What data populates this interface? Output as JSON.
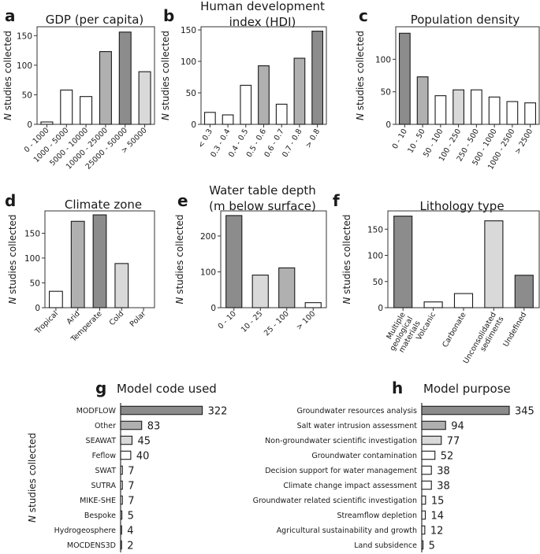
{
  "figure": {
    "y_axis_label_prefix": "N",
    "y_axis_label_suffix": "studies collected"
  },
  "colors": {
    "white": "#ffffff",
    "light": "#d9d9d9",
    "mid": "#b0b0b0",
    "dark": "#8c8c8c",
    "edge": "#1a1a1a"
  },
  "chart_data": [
    {
      "panel": "a",
      "type": "bar",
      "title": "GDP (per capita)",
      "categories": [
        "0 - 1000",
        "1000 - 5000",
        "5000 - 10000",
        "10000 - 25000",
        "25000 - 50000",
        "> 50000"
      ],
      "values": [
        4,
        58,
        47,
        123,
        156,
        89
      ],
      "shades": [
        "white",
        "white",
        "white",
        "mid",
        "dark",
        "light"
      ],
      "ylim": [
        0,
        165
      ],
      "yticks": [
        0,
        50,
        100,
        150
      ],
      "ylabel": "N studies collected"
    },
    {
      "panel": "b",
      "type": "bar",
      "title": "Human development index (HDI)",
      "title_lines": [
        "Human development",
        "index (HDI)"
      ],
      "categories": [
        "< 0.3",
        "0.3 - 0.4",
        "0.4 - 0.5",
        "0.5 - 0.6",
        "0.6 - 0.7",
        "0.7 - 0.8",
        "> 0.8"
      ],
      "values": [
        19,
        15,
        62,
        93,
        32,
        105,
        148
      ],
      "shades": [
        "white",
        "white",
        "white",
        "mid",
        "white",
        "mid",
        "dark"
      ],
      "ylim": [
        0,
        155
      ],
      "yticks": [
        0,
        50,
        100,
        150
      ],
      "ylabel": "N studies collected"
    },
    {
      "panel": "c",
      "type": "bar",
      "title": "Population density",
      "categories": [
        "0 - 10",
        "10 - 50",
        "50 - 100",
        "100 - 250",
        "250 - 500",
        "500 - 1000",
        "1000 - 2500",
        "> 2500"
      ],
      "values": [
        140,
        73,
        44,
        53,
        53,
        42,
        35,
        33
      ],
      "shades": [
        "dark",
        "mid",
        "white",
        "light",
        "white",
        "white",
        "white",
        "white"
      ],
      "ylim": [
        0,
        150
      ],
      "yticks": [
        0,
        50,
        100
      ],
      "ylabel": "N studies collected"
    },
    {
      "panel": "d",
      "type": "bar",
      "title": "Climate zone",
      "categories": [
        "Tropical",
        "Arid",
        "Temperate",
        "Cold",
        "Polar"
      ],
      "values": [
        33,
        174,
        187,
        89,
        0
      ],
      "shades": [
        "white",
        "mid",
        "dark",
        "light",
        "white"
      ],
      "ylim": [
        0,
        195
      ],
      "yticks": [
        0,
        50,
        100,
        150
      ],
      "ylabel": "N studies collected"
    },
    {
      "panel": "e",
      "type": "bar",
      "title": "Water table depth (m below surface)",
      "title_lines": [
        "Water table depth",
        "(m below surface)"
      ],
      "categories": [
        "0 - 10",
        "10 - 25",
        "25 - 100",
        "> 100"
      ],
      "values": [
        257,
        91,
        111,
        14
      ],
      "shades": [
        "dark",
        "light",
        "mid",
        "white"
      ],
      "ylim": [
        0,
        270
      ],
      "yticks": [
        0,
        100,
        200
      ],
      "ylabel": "N studies collected"
    },
    {
      "panel": "f",
      "type": "bar",
      "title": "Lithology type",
      "categories": [
        "Multiple geological materials",
        "Volcanic",
        "Carbonate",
        "Unconsolidated sediments",
        "Undefined"
      ],
      "category_lines": [
        [
          "Multiple",
          "geological",
          "materials"
        ],
        [
          "Volcanic"
        ],
        [
          "Carbonate"
        ],
        [
          "Unconsolidated",
          "sediments"
        ],
        [
          "Undefined"
        ]
      ],
      "values": [
        175,
        11,
        27,
        166,
        62
      ],
      "shades": [
        "dark",
        "white",
        "white",
        "light",
        "dark"
      ],
      "ylim": [
        0,
        185
      ],
      "yticks": [
        0,
        50,
        100,
        150
      ],
      "ylabel": "N studies collected"
    },
    {
      "panel": "g",
      "type": "hbar",
      "title": "Model code used",
      "categories": [
        "MODFLOW",
        "Other",
        "SEAWAT",
        "Feflow",
        "SWAT",
        "SUTRA",
        "MIKE-SHE",
        "Bespoke",
        "Hydrogeosphere",
        "MOCDENS3D"
      ],
      "values": [
        322,
        83,
        45,
        40,
        7,
        7,
        7,
        5,
        4,
        2
      ],
      "value_labels": [
        "322",
        "83",
        "45",
        "40",
        "7",
        "7",
        "7",
        "5",
        "4",
        "2"
      ],
      "shades": [
        "dark",
        "mid",
        "light",
        "white",
        "white",
        "white",
        "white",
        "white",
        "white",
        "white"
      ],
      "xmax": 345,
      "ylabel": "N studies collected"
    },
    {
      "panel": "h",
      "type": "hbar",
      "title": "Model purpose",
      "categories": [
        "Groundwater resources analysis",
        "Salt water intrusion assessment",
        "Non-groundwater scientific investigation",
        "Groundwater contamination",
        "Decision support for water management",
        "Climate change impact assessment",
        "Groundwater related scientific investigation",
        "Streamflow depletion",
        "Agricultural sustainability and growth",
        "Land subsidence"
      ],
      "values": [
        345,
        94,
        77,
        52,
        38,
        38,
        15,
        14,
        12,
        5
      ],
      "value_labels": [
        "345",
        "94",
        "77",
        "52",
        "38",
        "38",
        "15",
        "14",
        "12",
        "5"
      ],
      "shades": [
        "dark",
        "mid",
        "light",
        "white",
        "white",
        "white",
        "white",
        "white",
        "white",
        "white"
      ],
      "xmax": 345
    }
  ]
}
